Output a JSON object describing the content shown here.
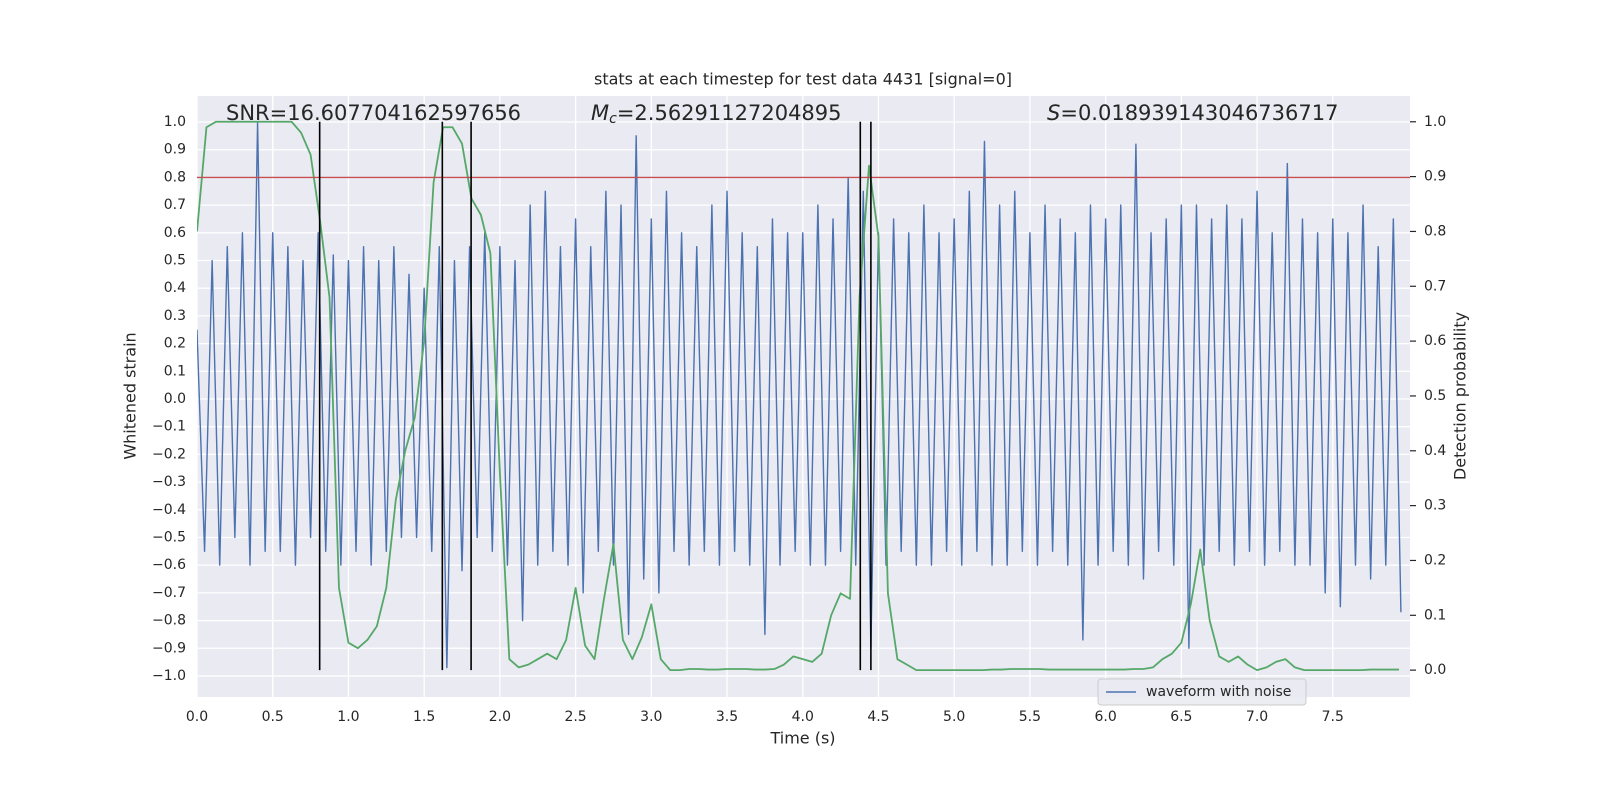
{
  "chart_data": {
    "type": "line",
    "title": "stats at each timestep for test data 4431 [signal=0]",
    "xlabel": "Time (s)",
    "ylabel": "Whitened strain",
    "y2label": "Detection probability",
    "annotations": [
      {
        "text": "SNR",
        "value": "=16.607704162597656"
      },
      {
        "text": "M",
        "sub": "c",
        "value": "=2.56291127204895",
        "italic": true
      },
      {
        "text": "S",
        "value": "=0.018939143046736717",
        "italic": true
      }
    ],
    "xlim": [
      0,
      8.01
    ],
    "ylim": [
      -1.076,
      1.094
    ],
    "y2lim": [
      -0.049,
      1.047
    ],
    "xticks": [
      {
        "value": 0,
        "label": "0.0"
      },
      0.5,
      {
        "value": 1,
        "label": "1.0"
      },
      1.5,
      {
        "value": 2,
        "label": "2.0"
      },
      2.5,
      {
        "value": 3,
        "label": "3.0"
      },
      3.5,
      {
        "value": 4,
        "label": "4.0"
      },
      4.5,
      {
        "value": 5,
        "label": "5.0"
      },
      5.5,
      {
        "value": 6,
        "label": "6.0"
      },
      6.5,
      {
        "value": 7,
        "label": "7.0"
      },
      7.5
    ],
    "yticks": [
      {
        "value": -1,
        "label": "−1.0"
      },
      {
        "value": -0.9,
        "label": "−0.9"
      },
      {
        "value": -0.8,
        "label": "−0.8"
      },
      {
        "value": -0.7,
        "label": "−0.7"
      },
      {
        "value": -0.6,
        "label": "−0.6"
      },
      {
        "value": -0.5,
        "label": "−0.5"
      },
      {
        "value": -0.4,
        "label": "−0.4"
      },
      {
        "value": -0.3,
        "label": "−0.3"
      },
      {
        "value": -0.2,
        "label": "−0.2"
      },
      {
        "value": -0.1,
        "label": "−0.1"
      },
      {
        "value": 0,
        "label": "0.0"
      },
      0.1,
      0.2,
      0.3,
      0.4,
      0.5,
      0.6,
      0.7,
      0.8,
      0.9,
      {
        "value": 1,
        "label": "1.0"
      }
    ],
    "y2ticks": [
      {
        "value": 0,
        "label": "0.0"
      },
      0.1,
      0.2,
      0.3,
      0.4,
      0.5,
      0.6,
      0.7,
      0.8,
      0.9,
      {
        "value": 1,
        "label": "1.0"
      }
    ],
    "grid": true,
    "legend": "lower right",
    "series": [
      {
        "name": "waveform with noise",
        "color": "#4c72b0",
        "x": [
          0,
          0.05,
          0.1,
          0.15,
          0.2,
          0.25,
          0.3,
          0.35,
          0.4,
          0.45,
          0.5,
          0.55,
          0.6,
          0.65,
          0.7,
          0.75,
          0.8,
          0.85,
          0.9,
          0.95,
          1,
          1.05,
          1.1,
          1.15,
          1.2,
          1.25,
          1.3,
          1.35,
          1.4,
          1.45,
          1.5,
          1.55,
          1.6,
          1.65,
          1.7,
          1.75,
          1.8,
          1.85,
          1.9,
          1.95,
          2,
          2.05,
          2.1,
          2.15,
          2.2,
          2.25,
          2.3,
          2.35,
          2.4,
          2.45,
          2.5,
          2.55,
          2.6,
          2.65,
          2.7,
          2.75,
          2.8,
          2.85,
          2.9,
          2.95,
          3,
          3.05,
          3.1,
          3.15,
          3.2,
          3.25,
          3.3,
          3.35,
          3.4,
          3.45,
          3.5,
          3.55,
          3.6,
          3.65,
          3.7,
          3.75,
          3.8,
          3.85,
          3.9,
          3.95,
          4,
          4.05,
          4.1,
          4.15,
          4.2,
          4.25,
          4.3,
          4.35,
          4.4,
          4.45,
          4.5,
          4.55,
          4.6,
          4.65,
          4.7,
          4.75,
          4.8,
          4.85,
          4.9,
          4.95,
          5,
          5.05,
          5.1,
          5.15,
          5.2,
          5.25,
          5.3,
          5.35,
          5.4,
          5.45,
          5.5,
          5.55,
          5.6,
          5.65,
          5.7,
          5.75,
          5.8,
          5.85,
          5.9,
          5.95,
          6,
          6.05,
          6.1,
          6.15,
          6.2,
          6.25,
          6.3,
          6.35,
          6.4,
          6.45,
          6.5,
          6.55,
          6.6,
          6.65,
          6.7,
          6.75,
          6.8,
          6.85,
          6.9,
          6.95,
          7,
          7.05,
          7.1,
          7.15,
          7.2,
          7.25,
          7.3,
          7.35,
          7.4,
          7.45,
          7.5,
          7.55,
          7.6,
          7.65,
          7.7,
          7.75,
          7.8,
          7.85,
          7.9,
          7.95
        ],
        "values": [
          0.25,
          -0.55,
          0.5,
          -0.6,
          0.55,
          -0.5,
          0.6,
          -0.6,
          1.0,
          -0.55,
          0.6,
          -0.55,
          0.55,
          -0.6,
          0.5,
          -0.5,
          0.6,
          -0.55,
          0.52,
          -0.6,
          0.5,
          -0.55,
          0.55,
          -0.6,
          0.5,
          -0.55,
          0.55,
          -0.5,
          0.45,
          -0.5,
          0.4,
          -0.55,
          0.55,
          -0.97,
          0.5,
          -0.62,
          0.55,
          -0.5,
          0.6,
          -0.55,
          0.55,
          -0.6,
          0.5,
          -0.8,
          0.7,
          -0.6,
          0.75,
          -0.55,
          0.55,
          -0.6,
          0.65,
          -0.7,
          0.55,
          -0.55,
          0.75,
          -0.6,
          0.7,
          -0.85,
          0.95,
          -0.65,
          0.65,
          -0.7,
          0.75,
          -0.55,
          0.6,
          -0.6,
          0.55,
          -0.55,
          0.7,
          -0.6,
          0.75,
          -0.55,
          0.6,
          -0.6,
          0.55,
          -0.85,
          0.65,
          -0.6,
          0.6,
          -0.55,
          0.6,
          -0.6,
          0.7,
          -0.6,
          0.65,
          -0.55,
          0.8,
          -0.6,
          0.75,
          -0.9,
          0.6,
          -0.6,
          0.65,
          -0.55,
          0.6,
          -0.6,
          0.7,
          -0.6,
          0.6,
          -0.55,
          0.65,
          -0.6,
          0.75,
          -0.55,
          0.93,
          -0.6,
          0.7,
          -0.6,
          0.75,
          -0.55,
          0.6,
          -0.6,
          0.7,
          -0.55,
          0.65,
          -0.6,
          0.6,
          -0.87,
          0.7,
          -0.6,
          0.65,
          -0.55,
          0.7,
          -0.6,
          0.92,
          -0.65,
          0.6,
          -0.55,
          0.65,
          -0.6,
          0.7,
          -0.9,
          0.7,
          -0.6,
          0.65,
          -0.55,
          0.7,
          -0.6,
          0.65,
          -0.55,
          0.75,
          -0.6,
          0.6,
          -0.55,
          0.85,
          -0.6,
          0.65,
          -0.6,
          0.6,
          -0.7,
          0.65,
          -0.75,
          0.6,
          -0.6,
          0.7,
          -0.65,
          0.55,
          -0.6,
          0.65,
          -0.77
        ]
      },
      {
        "color": "#55a868",
        "axis": "y2",
        "x": [
          0,
          0.0625,
          0.125,
          0.1875,
          0.25,
          0.3125,
          0.375,
          0.4375,
          0.5,
          0.5625,
          0.625,
          0.6875,
          0.75,
          0.8125,
          0.875,
          0.9375,
          1,
          1.0625,
          1.125,
          1.1875,
          1.25,
          1.3125,
          1.375,
          1.4375,
          1.5,
          1.5625,
          1.625,
          1.6875,
          1.75,
          1.8125,
          1.875,
          1.9375,
          2,
          2.0625,
          2.125,
          2.1875,
          2.25,
          2.3125,
          2.375,
          2.4375,
          2.5,
          2.5625,
          2.625,
          2.6875,
          2.75,
          2.8125,
          2.875,
          2.9375,
          3,
          3.0625,
          3.125,
          3.1875,
          3.25,
          3.3125,
          3.375,
          3.4375,
          3.5,
          3.5625,
          3.625,
          3.6875,
          3.75,
          3.8125,
          3.875,
          3.9375,
          4,
          4.0625,
          4.125,
          4.1875,
          4.25,
          4.3125,
          4.375,
          4.4375,
          4.5,
          4.5625,
          4.625,
          4.6875,
          4.75,
          4.8125,
          4.875,
          4.9375,
          5,
          5.0625,
          5.125,
          5.1875,
          5.25,
          5.3125,
          5.375,
          5.4375,
          5.5,
          5.5625,
          5.625,
          5.6875,
          5.75,
          5.8125,
          5.875,
          5.9375,
          6,
          6.0625,
          6.125,
          6.1875,
          6.25,
          6.3125,
          6.375,
          6.4375,
          6.5,
          6.5625,
          6.625,
          6.6875,
          6.75,
          6.8125,
          6.875,
          6.9375,
          7,
          7.0625,
          7.125,
          7.1875,
          7.25,
          7.3125,
          7.375,
          7.4375,
          7.5,
          7.5625,
          7.625,
          7.6875,
          7.75,
          7.8125,
          7.875,
          7.9375
        ],
        "values": [
          0.8,
          0.99,
          1.0,
          1.0,
          1.0,
          1.0,
          1.0,
          1.0,
          1.0,
          1.0,
          1.0,
          0.98,
          0.94,
          0.82,
          0.68,
          0.15,
          0.05,
          0.04,
          0.055,
          0.08,
          0.15,
          0.31,
          0.4,
          0.46,
          0.6,
          0.89,
          0.99,
          0.99,
          0.96,
          0.86,
          0.83,
          0.76,
          0.36,
          0.02,
          0.005,
          0.01,
          0.02,
          0.03,
          0.02,
          0.055,
          0.15,
          0.045,
          0.02,
          0.13,
          0.23,
          0.055,
          0.02,
          0.06,
          0.12,
          0.02,
          0.0,
          0.0,
          0.002,
          0.002,
          0.001,
          0.001,
          0.002,
          0.002,
          0.002,
          0.001,
          0.001,
          0.002,
          0.01,
          0.025,
          0.02,
          0.015,
          0.03,
          0.1,
          0.14,
          0.13,
          0.68,
          0.92,
          0.79,
          0.14,
          0.02,
          0.01,
          0.0,
          0.0,
          0.0,
          0.0,
          0.0,
          0.0,
          0.0,
          0.0,
          0.001,
          0.001,
          0.002,
          0.002,
          0.002,
          0.002,
          0.001,
          0.001,
          0.001,
          0.001,
          0.001,
          0.001,
          0.001,
          0.001,
          0.001,
          0.002,
          0.002,
          0.005,
          0.02,
          0.03,
          0.05,
          0.12,
          0.22,
          0.09,
          0.025,
          0.015,
          0.025,
          0.01,
          0.0,
          0.005,
          0.015,
          0.02,
          0.005,
          0.0,
          0.0,
          0.0,
          0.0,
          0.0,
          0.0,
          0.0,
          0.001,
          0.001,
          0.001,
          0.001
        ]
      }
    ],
    "hline": {
      "y": 0.8,
      "color": "#c44e52"
    },
    "vlines": {
      "x": [
        0.81,
        1.62,
        1.81,
        4.38,
        4.45
      ],
      "ymin": 0,
      "ymax": 1,
      "axis": "y2",
      "color": "#000000"
    }
  }
}
